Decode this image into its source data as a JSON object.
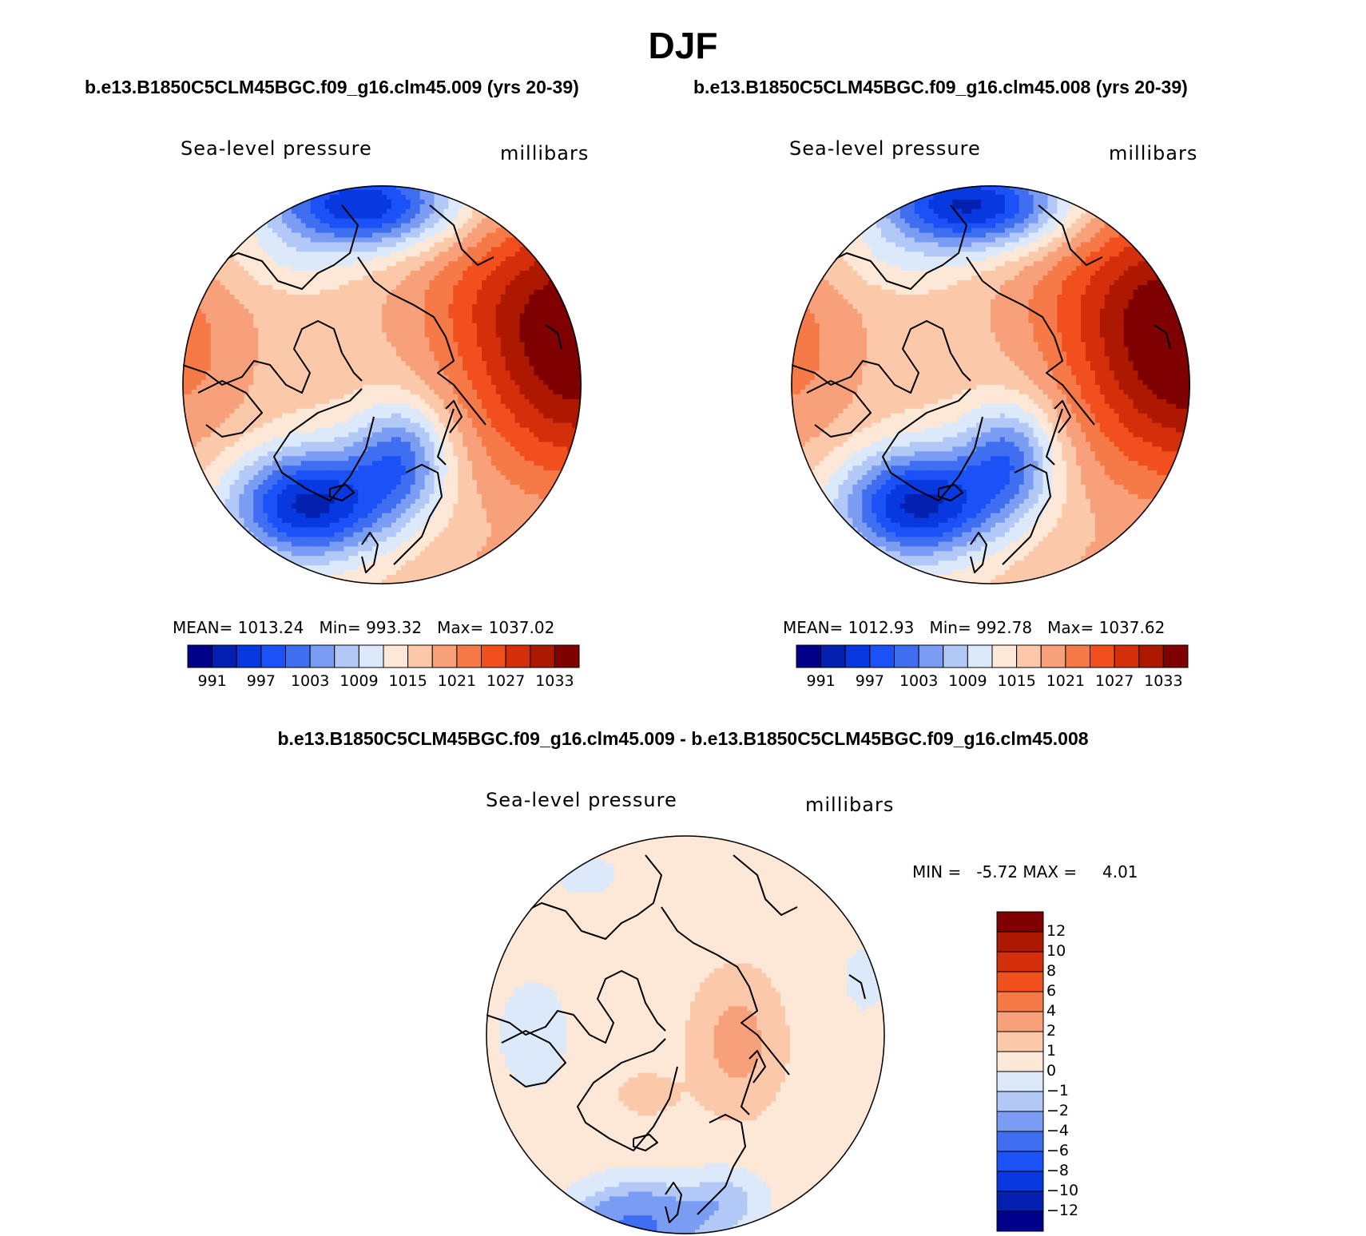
{
  "page": {
    "title": "DJF",
    "case_left": "b.e13.B1850C5CLM45BGC.f09_g16.clm45.009 (yrs 20-39)",
    "case_right": "b.e13.B1850C5CLM45BGC.f09_g16.clm45.008 (yrs 20-39)",
    "diff_title": "b.e13.B1850C5CLM45BGC.f09_g16.clm45.009 - b.e13.B1850C5CLM45BGC.f09_g16.clm45.008"
  },
  "colors": {
    "abs_scale": [
      "#00008a",
      "#0320b0",
      "#0839e0",
      "#1b52f7",
      "#3f6ff0",
      "#7a9cf2",
      "#b2c8f6",
      "#dce9fa",
      "#fde8d8",
      "#fbc9aa",
      "#f8a07a",
      "#f67948",
      "#f24f1e",
      "#d42e0b",
      "#ac1800",
      "#7e0000"
    ],
    "diff_scale": [
      "#00008a",
      "#0320b0",
      "#0839e0",
      "#1b52f7",
      "#3f6ff0",
      "#7a9cf2",
      "#b2c8f6",
      "#dce9fa",
      "#fde8d8",
      "#fbc9aa",
      "#f8a07a",
      "#f67948",
      "#f24f1e",
      "#d42e0b",
      "#ac1800",
      "#7e0000"
    ],
    "coast": "#000000"
  },
  "chart_data": [
    {
      "type": "heatmap",
      "projection": "north-polar-stereographic",
      "title": "Sea-level pressure",
      "units": "millibars",
      "stats": {
        "mean_label": "MEAN=",
        "mean": "1013.24",
        "min_label": "Min=",
        "min": "993.32",
        "max_label": "Max=",
        "max": "1037.02"
      },
      "colorbar_ticks": [
        "991",
        "997",
        "1003",
        "1009",
        "1015",
        "1021",
        "1027",
        "1033"
      ],
      "levels": [
        991,
        994,
        997,
        1000,
        1003,
        1006,
        1009,
        1012,
        1015,
        1018,
        1021,
        1024,
        1027,
        1030,
        1033
      ],
      "features": {
        "low_nw_pacific_center": 994,
        "high_west_siberia": 1036,
        "low_icelandic_center": 993,
        "high_north_america": 1022,
        "arctic_basin": 1016
      }
    },
    {
      "type": "heatmap",
      "projection": "north-polar-stereographic",
      "title": "Sea-level pressure",
      "units": "millibars",
      "stats": {
        "mean_label": "MEAN=",
        "mean": "1012.93",
        "min_label": "Min=",
        "min": "992.78",
        "max_label": "Max=",
        "max": "1037.62"
      },
      "colorbar_ticks": [
        "991",
        "997",
        "1003",
        "1009",
        "1015",
        "1021",
        "1027",
        "1033"
      ],
      "levels": [
        991,
        994,
        997,
        1000,
        1003,
        1006,
        1009,
        1012,
        1015,
        1018,
        1021,
        1024,
        1027,
        1030,
        1033
      ],
      "features": {
        "low_nw_pacific_center": 993,
        "high_west_siberia": 1037,
        "low_icelandic_center": 993,
        "high_north_america": 1022,
        "arctic_basin": 1016
      }
    },
    {
      "type": "heatmap",
      "projection": "north-polar-stereographic",
      "title": "Sea-level pressure",
      "units": "millibars",
      "stats": {
        "min_label": "MIN =",
        "min": "-5.72",
        "max_label": "MAX =",
        "max": "4.01"
      },
      "colorbar_ticks": [
        "12",
        "10",
        "8",
        "6",
        "4",
        "2",
        "1",
        "0",
        "−1",
        "−2",
        "−4",
        "−6",
        "−8",
        "−10",
        "−12"
      ],
      "levels": [
        -12,
        -10,
        -8,
        -6,
        -4,
        -2,
        -1,
        0,
        1,
        2,
        4,
        6,
        8,
        10,
        12
      ],
      "features": {
        "background": 0.5,
        "europe_positive": 2.5,
        "greenland_positive": 1.5,
        "north_atlantic_negative": -4.5,
        "north_pacific_negative": -0.5,
        "alaska_negative": -0.5
      }
    }
  ]
}
